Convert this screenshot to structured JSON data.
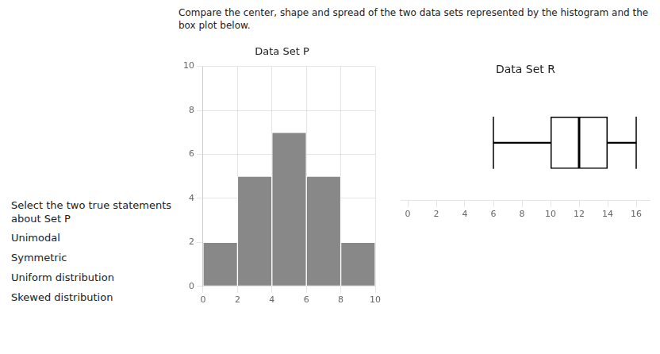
{
  "title": "Compare the center, shape and spread of the two data sets represented by the histogram and the box plot below.",
  "annotations": [
    "Select the two true statements about Set P",
    "Unimodal",
    "Symmetric",
    "Uniform distribution",
    "Skewed distribution"
  ],
  "chart_data": [
    {
      "type": "histogram",
      "title": "Data Set P",
      "bins": [
        0,
        2,
        4,
        6,
        8,
        10
      ],
      "values": [
        2,
        5,
        7,
        5,
        2
      ],
      "color": "#888888",
      "xlim": [
        0,
        10
      ],
      "ylim": [
        0,
        10
      ],
      "xticks": [
        0,
        2,
        4,
        6,
        8,
        10
      ],
      "yticks": [
        0,
        2,
        4,
        6,
        8,
        10
      ],
      "grid": true
    },
    {
      "type": "box",
      "title": "Data Set R",
      "min": 6,
      "q1": 10,
      "median": 12,
      "q3": 14,
      "max": 16,
      "xlim": [
        -0.5,
        17
      ],
      "xticks": [
        0,
        2,
        4,
        6,
        8,
        10,
        12,
        14,
        16
      ],
      "grid": false,
      "tick_labels": "x"
    }
  ]
}
